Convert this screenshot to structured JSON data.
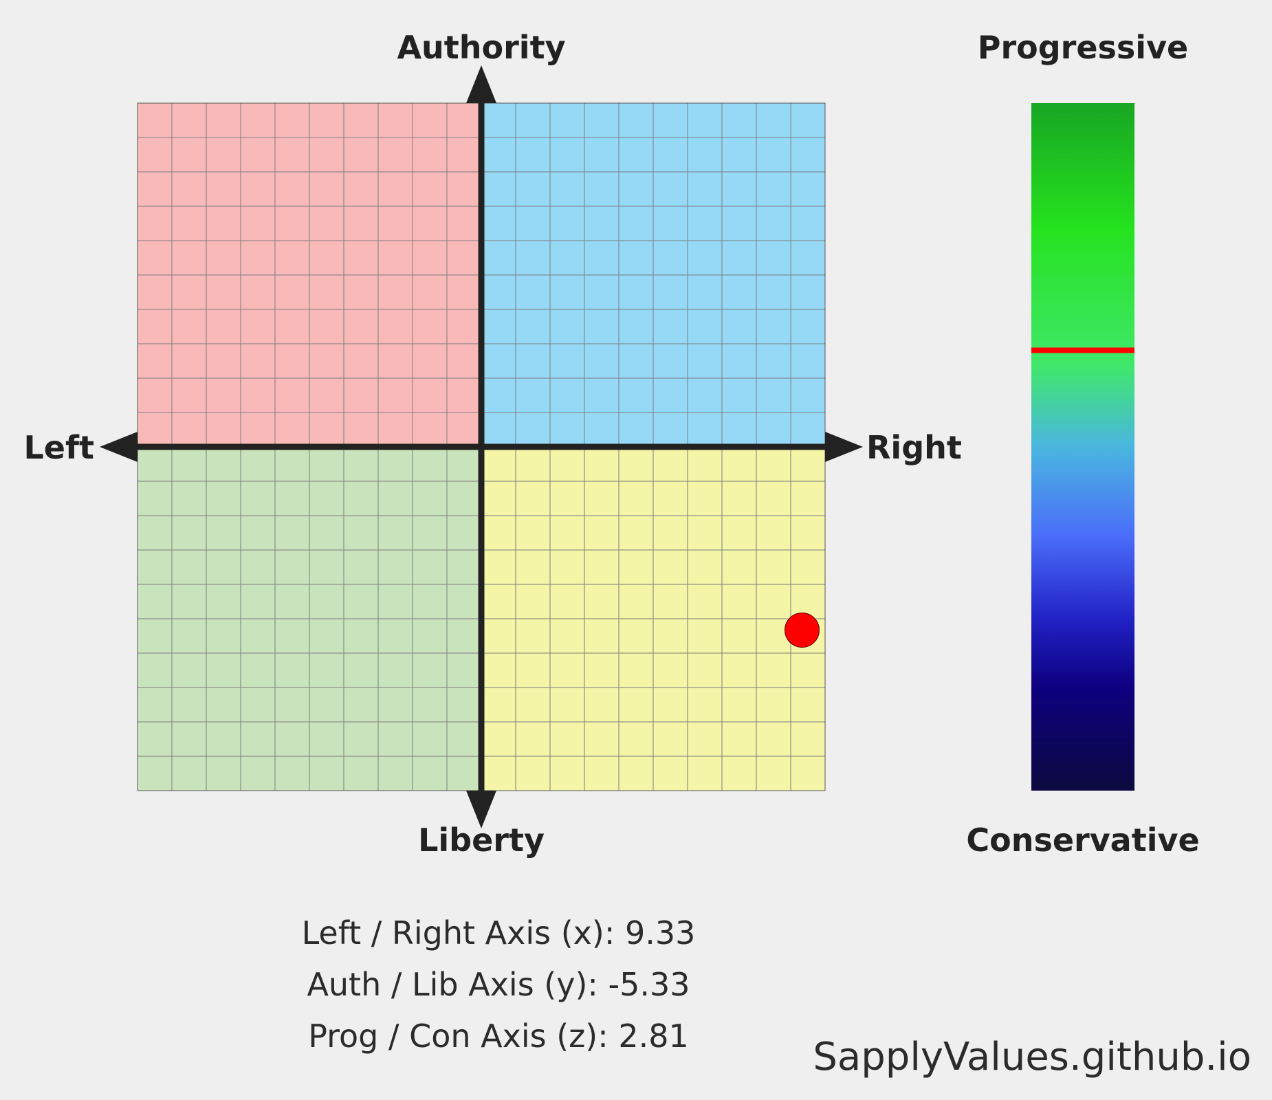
{
  "chart_data": {
    "type": "scatter",
    "title": "",
    "axis_labels": {
      "top": "Authority",
      "bottom": "Liberty",
      "left": "Left",
      "right": "Right"
    },
    "scale_labels": {
      "top": "Progressive",
      "bottom": "Conservative"
    },
    "x_range": [
      -10,
      10
    ],
    "y_range": [
      -10,
      10
    ],
    "z_range": [
      -10,
      10
    ],
    "grid": true,
    "grid_divisions": 20,
    "quadrant_colors": {
      "top_left": "#f9b9b9",
      "top_right": "#95d9f6",
      "bottom_left": "#c9e4bd",
      "bottom_right": "#f4f5a6"
    },
    "marker_color": "#ff0000",
    "point": {
      "x": 9.33,
      "y": -5.33,
      "z": 2.81
    },
    "gradient_stops": [
      "#18a624",
      "#25e21e",
      "#3fe86a",
      "#4ab6e0",
      "#4a6df9",
      "#2122c6",
      "#0d0080",
      "#0c0a3f"
    ]
  },
  "readouts": {
    "x": "Left / Right Axis (x): 9.33",
    "y": "Auth / Lib Axis (y): -5.33",
    "z": "Prog / Con Axis (z): 2.81"
  },
  "site": "SapplyValues.github.io"
}
